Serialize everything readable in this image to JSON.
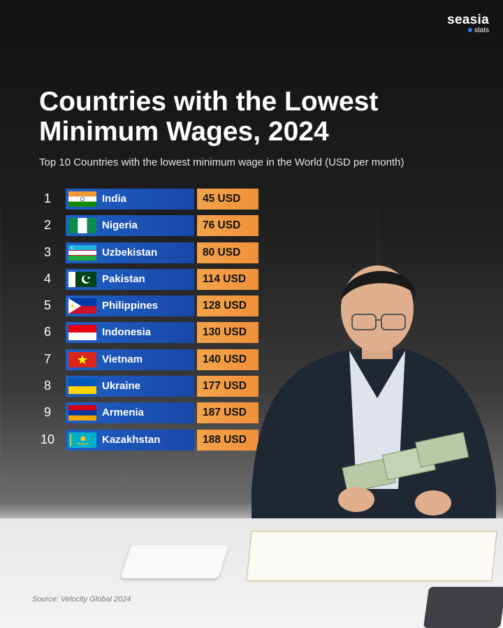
{
  "brand": {
    "name": "seasia",
    "sub": "stats"
  },
  "title": "Countries with the Lowest Minimum Wages, 2024",
  "subtitle": "Top 10 Countries with the lowest minimum wage in the World (USD per month)",
  "source": "Source: Velocity Global 2024",
  "colors": {
    "country_bar": "#1f5fc4",
    "value_bar": "#f3a44b",
    "text": "#ffffff"
  },
  "chart_data": {
    "type": "bar",
    "title": "Countries with the Lowest Minimum Wages, 2024",
    "subtitle": "Top 10 Countries with the lowest minimum wage in the World (USD per month)",
    "rows": [
      {
        "rank": "1",
        "country": "India",
        "value": 45,
        "label": "45 USD",
        "flag": "india"
      },
      {
        "rank": "2",
        "country": "Nigeria",
        "value": 76,
        "label": "76 USD",
        "flag": "nigeria"
      },
      {
        "rank": "3",
        "country": "Uzbekistan",
        "value": 80,
        "label": "80 USD",
        "flag": "uzbekistan"
      },
      {
        "rank": "4",
        "country": "Pakistan",
        "value": 114,
        "label": "114 USD",
        "flag": "pakistan"
      },
      {
        "rank": "5",
        "country": "Philippines",
        "value": 128,
        "label": "128 USD",
        "flag": "philippines"
      },
      {
        "rank": "6",
        "country": "Indonesia",
        "value": 130,
        "label": "130 USD",
        "flag": "indonesia"
      },
      {
        "rank": "7",
        "country": "Vietnam",
        "value": 140,
        "label": "140 USD",
        "flag": "vietnam"
      },
      {
        "rank": "8",
        "country": "Ukraine",
        "value": 177,
        "label": "177 USD",
        "flag": "ukraine"
      },
      {
        "rank": "9",
        "country": "Armenia",
        "value": 187,
        "label": "187 USD",
        "flag": "armenia"
      },
      {
        "rank": "10",
        "country": "Kazakhstan",
        "value": 188,
        "label": "188 USD",
        "flag": "kazakhstan"
      }
    ]
  }
}
